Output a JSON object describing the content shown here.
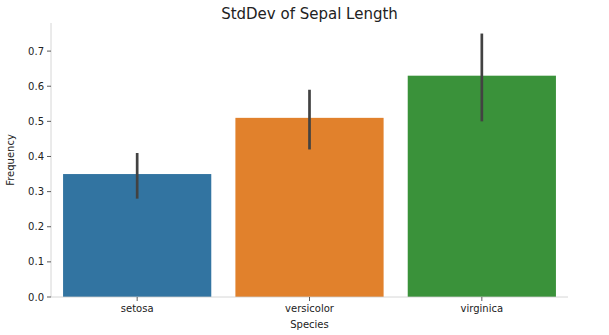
{
  "chart_data": {
    "type": "bar",
    "title": "StdDev of Sepal Length",
    "x_label": "Species",
    "y_label": "Frequency",
    "categories": [
      "setosa",
      "versicolor",
      "virginica"
    ],
    "values": [
      0.35,
      0.51,
      0.63
    ],
    "error_low": [
      0.28,
      0.42,
      0.5
    ],
    "error_high": [
      0.41,
      0.59,
      0.75
    ],
    "colors": [
      "#3274a1",
      "#e1812c",
      "#3a923a"
    ],
    "ylim": [
      0,
      0.78
    ],
    "yticks": [
      {
        "value": 0,
        "label": "0.0"
      },
      0.1,
      0.2,
      0.3,
      0.4,
      0.5,
      0.6,
      0.7
    ],
    "grid": false
  }
}
